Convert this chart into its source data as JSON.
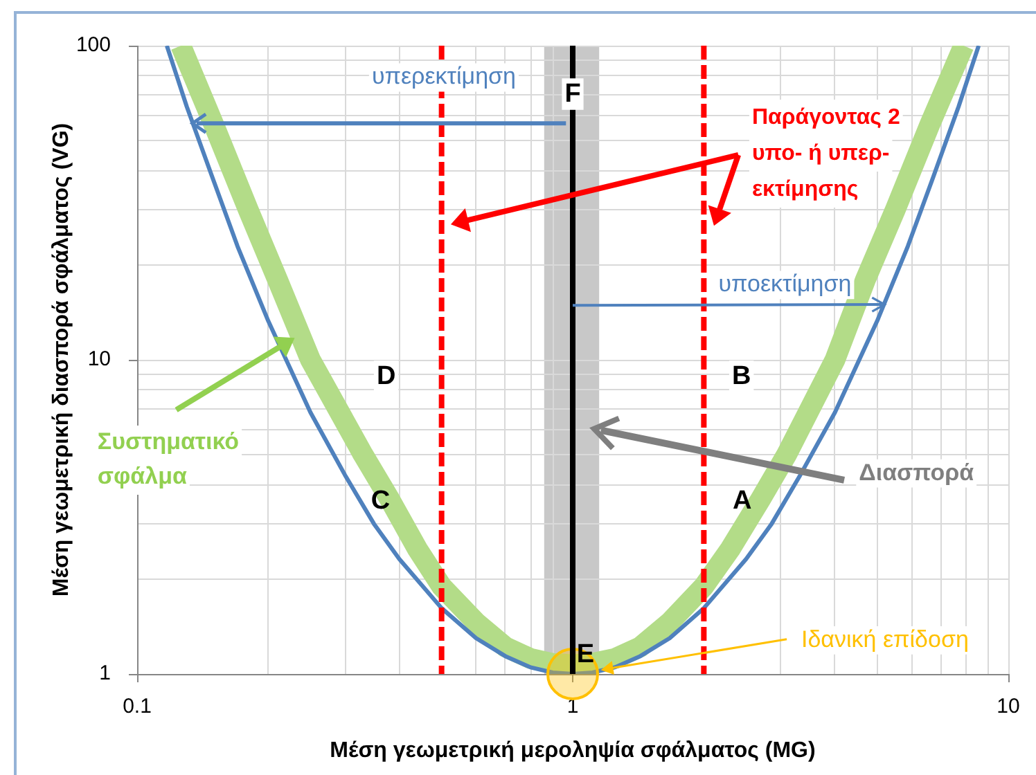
{
  "chart_data": {
    "type": "line",
    "xlabel": "Μέση γεωμετρική μεροληψία σφάλματος (MG)",
    "ylabel": "Μέση γεωμετρική διασπορά σφάλματος (VG)",
    "series": [
      {
        "name": "Συστηματικό σφάλμα",
        "color": "#b3dc88",
        "x": [
          0.126,
          0.15,
          0.18,
          0.21,
          0.25,
          0.33,
          0.38,
          0.44,
          0.5,
          0.6,
          0.7,
          0.8,
          0.9,
          1,
          1.1,
          1.25,
          1.43,
          1.67,
          2,
          2.3,
          2.7,
          3.1,
          4,
          4.7,
          5.5,
          6.6,
          7.9
        ],
        "values": [
          100,
          56,
          30,
          18,
          10,
          5,
          3.6,
          2.5,
          1.9,
          1.46,
          1.22,
          1.12,
          1.08,
          1.07,
          1.08,
          1.12,
          1.22,
          1.46,
          1.9,
          2.5,
          3.6,
          5,
          10,
          18,
          30,
          56,
          100
        ]
      },
      {
        "color": "#4f81bd",
        "x": [
          0.117,
          0.13,
          0.15,
          0.17,
          0.2,
          0.25,
          0.3,
          0.35,
          0.4,
          0.5,
          0.6,
          0.7,
          0.8,
          0.9,
          1,
          1.11,
          1.25,
          1.43,
          1.67,
          2,
          2.5,
          2.86,
          3.33,
          4,
          5,
          5.88,
          6.67,
          7.69,
          8.55
        ],
        "values": [
          100,
          64,
          37,
          23,
          13.3,
          6.8,
          4.3,
          3,
          2.32,
          1.62,
          1.3,
          1.14,
          1.05,
          1.01,
          1,
          1.01,
          1.05,
          1.14,
          1.3,
          1.62,
          2.32,
          3,
          4.3,
          6.8,
          13.3,
          23,
          37,
          64,
          100
        ]
      },
      {
        "name": "Ιδανική επίδοση",
        "type": "scatter",
        "marker": "circle",
        "color": "#ffc000",
        "x": [
          1
        ],
        "values": [
          1
        ]
      }
    ],
    "xlim": [
      0.1,
      10
    ],
    "ylim": [
      1,
      100
    ],
    "xticks": [
      0.1,
      {
        "value": 0.2,
        "label": null
      },
      {
        "value": 0.3,
        "label": null
      },
      {
        "value": 0.4,
        "label": null
      },
      {
        "value": 0.6,
        "label": null
      },
      {
        "value": 0.7,
        "label": null
      },
      {
        "value": 0.8,
        "label": null
      },
      {
        "value": 0.9,
        "label": null
      },
      1,
      {
        "value": 3,
        "label": null
      },
      {
        "value": 4,
        "label": null
      },
      {
        "value": 5,
        "label": null
      },
      {
        "value": 6,
        "label": null
      },
      {
        "value": 7,
        "label": null
      },
      {
        "value": 8,
        "label": null
      },
      {
        "value": 9,
        "label": null
      },
      10
    ],
    "yticks": [
      1,
      {
        "value": 2,
        "label": null
      },
      {
        "value": 3,
        "label": null
      },
      {
        "value": 4,
        "label": null
      },
      {
        "value": 5,
        "label": null
      },
      {
        "value": 6,
        "label": null
      },
      {
        "value": 7,
        "label": null
      },
      {
        "value": 8,
        "label": null
      },
      {
        "value": 9,
        "label": null
      },
      10,
      {
        "value": 20,
        "label": null
      },
      {
        "value": 30,
        "label": null
      },
      {
        "value": 40,
        "label": null
      },
      {
        "value": 50,
        "label": null
      },
      {
        "value": 60,
        "label": null
      },
      {
        "value": 70,
        "label": null
      },
      {
        "value": 80,
        "label": null
      },
      {
        "value": 90,
        "label": null
      },
      100
    ],
    "log": "xy",
    "grid": true,
    "marker": "none",
    "bands": [
      {
        "axis": "x",
        "from": 0.86,
        "to": 1.15,
        "label": "Διασπορά",
        "color": "#c8c8c8"
      }
    ],
    "ref_lines": [
      {
        "axis": "x",
        "value": 1,
        "color": "#000000"
      },
      {
        "axis": "x",
        "value": 0.5,
        "color": "#ff0000",
        "line_style": "dashed"
      },
      {
        "axis": "x",
        "value": 2,
        "color": "#ff0000",
        "line_style": "dashed"
      }
    ],
    "annotations": [
      "υπερεκτίμηση",
      "F",
      "Παράγοντας 2 υπο- ή υπερ-εκτίμησης",
      {
        "text": "υποεκτίμηση",
        "x": 5.2,
        "y": 15
      },
      "D",
      "B",
      "C",
      "A",
      "E"
    ]
  }
}
